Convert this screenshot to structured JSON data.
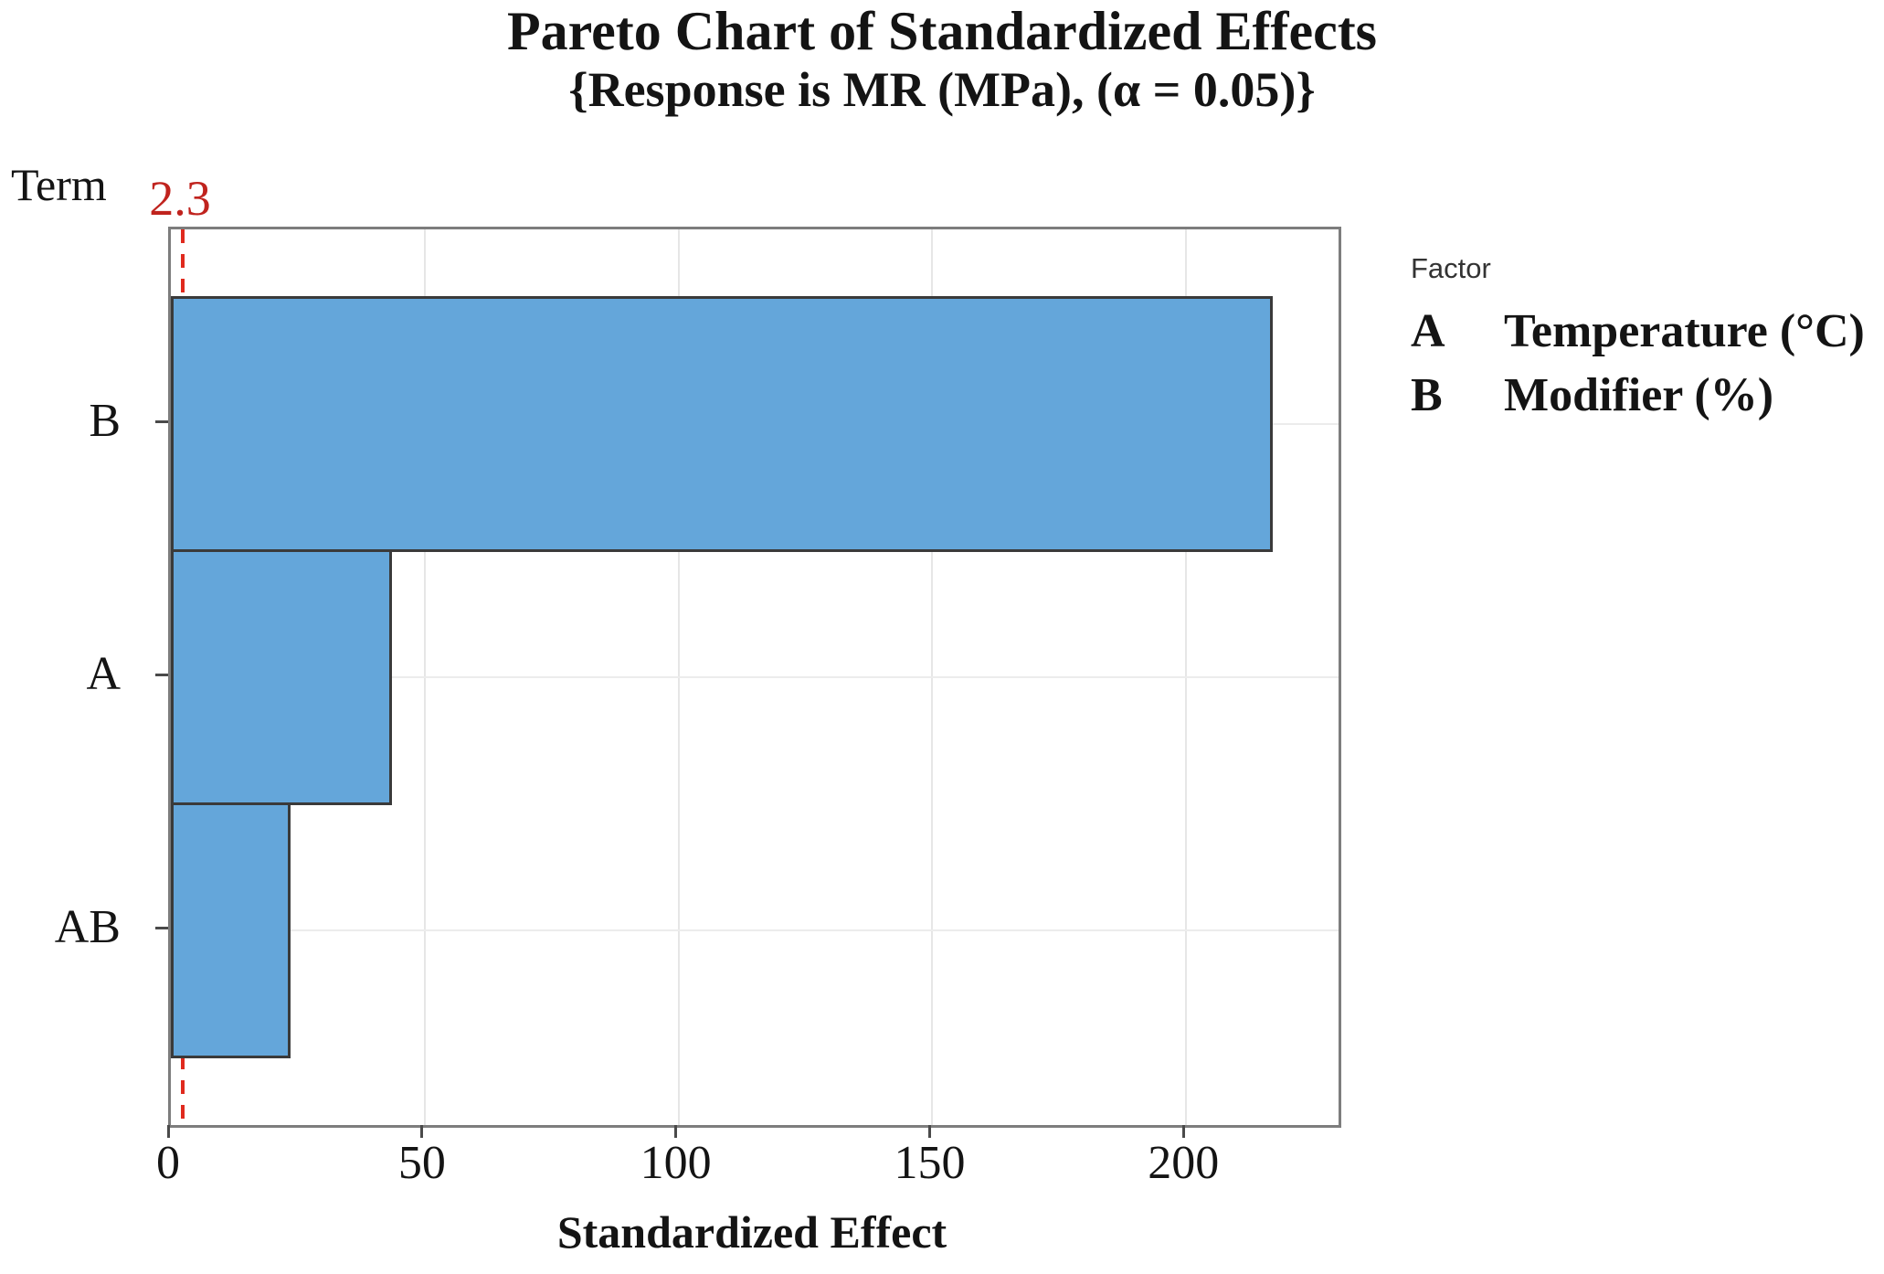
{
  "title": "Pareto Chart of Standardized Effects",
  "subtitle": "{Response is MR (MPa), (α = 0.05)}",
  "y_axis_title": "Term",
  "reference_line_label": "2.3",
  "legend": {
    "heading": "Factor",
    "entries": [
      {
        "key": "A",
        "label": "Temperature (°C)"
      },
      {
        "key": "B",
        "label": "Modifier (%)"
      }
    ]
  },
  "chart_data": {
    "type": "bar",
    "orientation": "horizontal",
    "title": "Pareto Chart of Standardized Effects",
    "subtitle": "{Response is MR (MPa), (α = 0.05)}",
    "categories": [
      "B",
      "A",
      "AB"
    ],
    "values": [
      217,
      43.5,
      23.6
    ],
    "xlabel": "Standardized Effect",
    "ylabel": "Term",
    "xlim": [
      0,
      230
    ],
    "xticks": [
      0,
      50,
      100,
      150,
      200
    ],
    "reference_line": 2.3,
    "grid": true,
    "legend_position": "top-right",
    "bar_color": "#64a6da",
    "bar_border_color": "#3a3a3a",
    "reference_line_color": "#e02a1e",
    "reference_label_color": "#c0231e"
  }
}
